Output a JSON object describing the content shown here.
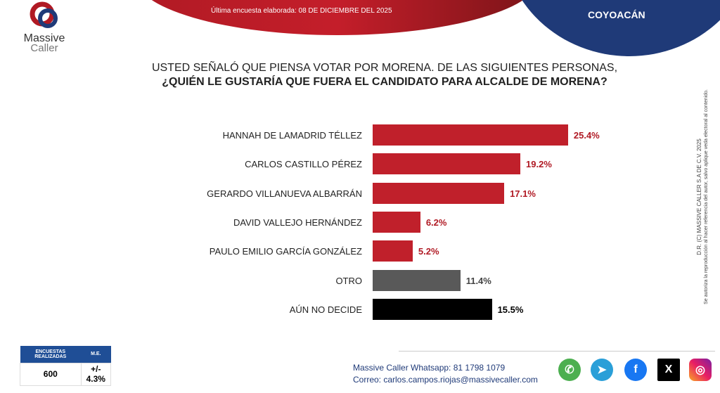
{
  "header": {
    "date_text": "Última encuesta elaborada: 08 DE DICIEMBRE DEL 2025",
    "region": "COYOACÁN",
    "logo_text": "Massive Caller"
  },
  "chart_data": {
    "type": "bar",
    "orientation": "horizontal",
    "title": "USTED SEÑALÓ QUE PIENSA VOTAR POR MORENA. DE LAS SIGUIENTES PERSONAS,",
    "subtitle": "¿QUIÉN LE GUSTARÍA QUE FUERA EL CANDIDATO PARA ALCALDE DE MORENA?",
    "categories": [
      "HANNAH DE LAMADRID TÉLLEZ",
      "CARLOS CASTILLO PÉREZ",
      "GERARDO VILLANUEVA ALBARRÁN",
      "DAVID VALLEJO HERNÁNDEZ",
      "PAULO EMILIO GARCÍA GONZÁLEZ",
      "OTRO",
      "AÚN NO DECIDE"
    ],
    "values": [
      25.4,
      19.2,
      17.1,
      6.2,
      5.2,
      11.4,
      15.5
    ],
    "labels": [
      "25.4%",
      "19.2%",
      "17.1%",
      "6.2%",
      "5.2%",
      "11.4%",
      "15.5%"
    ],
    "colors": [
      "#c0202b",
      "#c0202b",
      "#c0202b",
      "#c0202b",
      "#c0202b",
      "#595959",
      "#000000"
    ],
    "label_colors": [
      "#b01a24",
      "#b01a24",
      "#b01a24",
      "#b01a24",
      "#b01a24",
      "#444444",
      "#000000"
    ]
  },
  "side_text": {
    "line1": "D.R. (C) MASSIVE CALLER S.A DE C.V. 2025",
    "line2": "Se autoriza la reproducción al hacer referencia del autor, salvo aplique veda electoral al contenido."
  },
  "stats": {
    "h1": "ENCUESTAS REALIZADAS",
    "h2": "M.E.",
    "v1": "600",
    "v2": "+/- 4.3%"
  },
  "contact": {
    "whatsapp": "Massive Caller Whatsapp: 81 1798 1079",
    "email": "Correo: carlos.campos.riojas@massivecaller.com"
  },
  "social": [
    "whatsapp",
    "telegram",
    "facebook",
    "x",
    "instagram"
  ]
}
